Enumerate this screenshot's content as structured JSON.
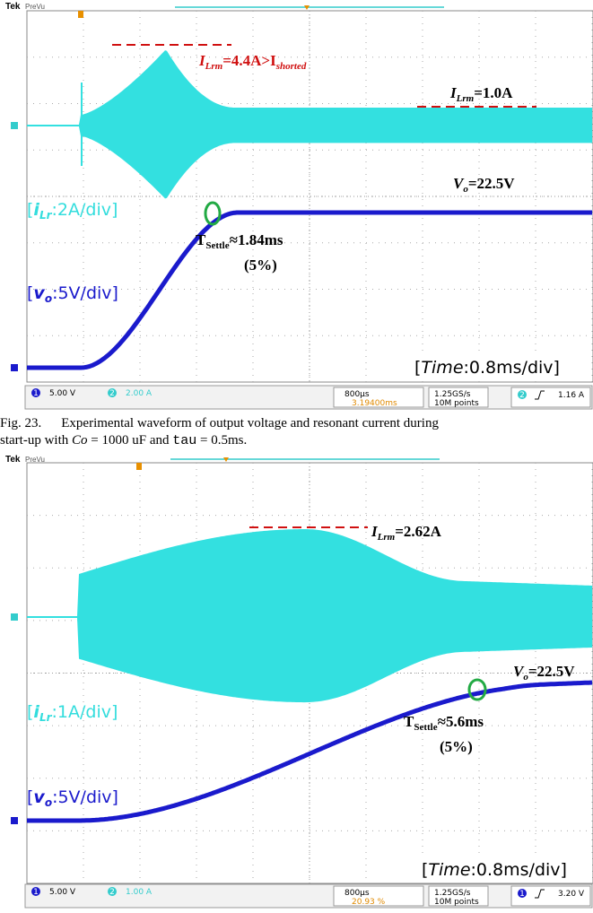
{
  "scopes": [
    {
      "brand": "Tek",
      "mode": "PreVu",
      "peak_label": [
        "I",
        "Lrm",
        "=4.4A>I",
        "shorted"
      ],
      "steady_label": [
        "I",
        "Lrm",
        "=1.0A"
      ],
      "vo_label": [
        "V",
        "o",
        "=22.5V"
      ],
      "current_scale": [
        "[",
        "i",
        "Lr",
        ":2A/div]"
      ],
      "settle_label": [
        "T",
        "Settle",
        "≈1.84ms"
      ],
      "settle_pct": "(5%)",
      "voltage_scale": [
        "[",
        "v",
        "o",
        ":5V/div]"
      ],
      "time_scale": [
        "[",
        "Time",
        ":0.8ms/div]"
      ],
      "status": {
        "ch1": "1",
        "ch1_scale": "5.00 V",
        "ch2": "2",
        "ch2_scale": "2.00 A",
        "timebase": "800µs",
        "position": "3.19400ms",
        "rate": "1.25GS/s",
        "points": "10M points",
        "trig_ch": "2",
        "trig_level": "1.16 A"
      }
    },
    {
      "brand": "Tek",
      "mode": "PreVu",
      "peak_label": [
        "I",
        "Lrm",
        "=2.62A"
      ],
      "vo_label": [
        "V",
        "o",
        "=22.5V"
      ],
      "current_scale": [
        "[",
        "i",
        "Lr",
        ":1A/div]"
      ],
      "settle_label": [
        "T",
        "Settle",
        "≈5.6ms"
      ],
      "settle_pct": "(5%)",
      "voltage_scale": [
        "[",
        "v",
        "o",
        ":5V/div]"
      ],
      "time_scale": [
        "[",
        "Time",
        ":0.8ms/div]"
      ],
      "status": {
        "ch1": "1",
        "ch1_scale": "5.00 V",
        "ch2": "2",
        "ch2_scale": "1.00 A",
        "timebase": "800µs",
        "position": "20.93 %",
        "rate": "1.25GS/s",
        "points": "10M points",
        "trig_ch": "1",
        "trig_level": "3.20 V"
      }
    }
  ],
  "caption": {
    "label": "Fig. 23.",
    "line1": "Experimental waveform of output voltage and resonant current during",
    "line2_a": "start-up with ",
    "math1": "Co",
    "line2_b": " = 1000 uF and ",
    "math2": "tau",
    "line2_c": " = 0.5ms."
  }
}
